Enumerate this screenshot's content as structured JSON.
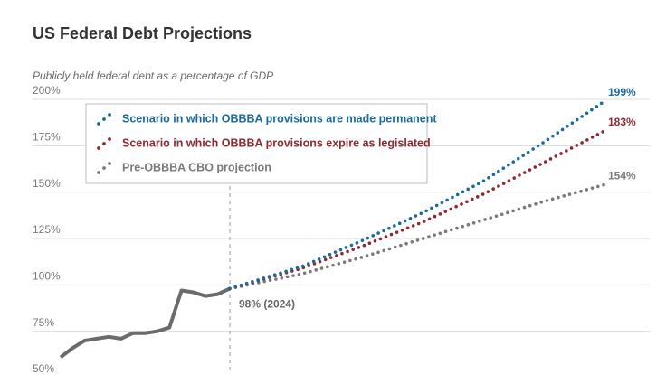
{
  "chart_data": {
    "type": "line",
    "title": "US Federal Debt Projections",
    "subtitle": "Publicly held federal debt as a percentage of GDP",
    "xlim": [
      2010,
      2055
    ],
    "ylim": [
      50,
      200
    ],
    "yticks": [
      {
        "value": 50,
        "label": "50%"
      },
      {
        "value": 75,
        "label": "75%"
      },
      {
        "value": 100,
        "label": "100%"
      },
      {
        "value": 125,
        "label": "125%"
      },
      {
        "value": 150,
        "label": "150%"
      },
      {
        "value": 175,
        "label": "175%"
      },
      {
        "value": 200,
        "label": "200%"
      }
    ],
    "grid": true,
    "history": {
      "color": "#6b6b6b",
      "x": [
        2010,
        2011,
        2012,
        2013,
        2014,
        2015,
        2016,
        2017,
        2018,
        2019,
        2020,
        2021,
        2022,
        2023,
        2024
      ],
      "values": [
        61,
        66,
        70,
        71,
        72,
        71,
        74,
        74,
        75,
        77,
        97,
        96,
        94,
        95,
        98
      ],
      "annotation": "98% (2024)"
    },
    "x": [
      2024,
      2030,
      2035,
      2040,
      2045,
      2050,
      2055
    ],
    "series": [
      {
        "name": "Scenario in which OBBBA provisions are made permanent",
        "color": "#1c6a9b",
        "values": [
          98,
          110,
          124,
          139,
          156,
          177,
          199
        ],
        "value_labels": [
          null,
          null,
          null,
          null,
          null,
          null,
          "199%"
        ]
      },
      {
        "name": "Scenario in which OBBBA provisions expire as legislated",
        "color": "#8e2a2f",
        "values": [
          98,
          109,
          121,
          134,
          149,
          166,
          183
        ],
        "value_labels": [
          null,
          null,
          null,
          null,
          null,
          null,
          "183%"
        ]
      },
      {
        "name": "Pre-OBBBA CBO projection",
        "color": "#7a7a7a",
        "values": [
          98,
          106,
          115,
          125,
          135,
          145,
          154
        ],
        "value_labels": [
          null,
          null,
          null,
          null,
          null,
          null,
          "154%"
        ]
      }
    ]
  }
}
